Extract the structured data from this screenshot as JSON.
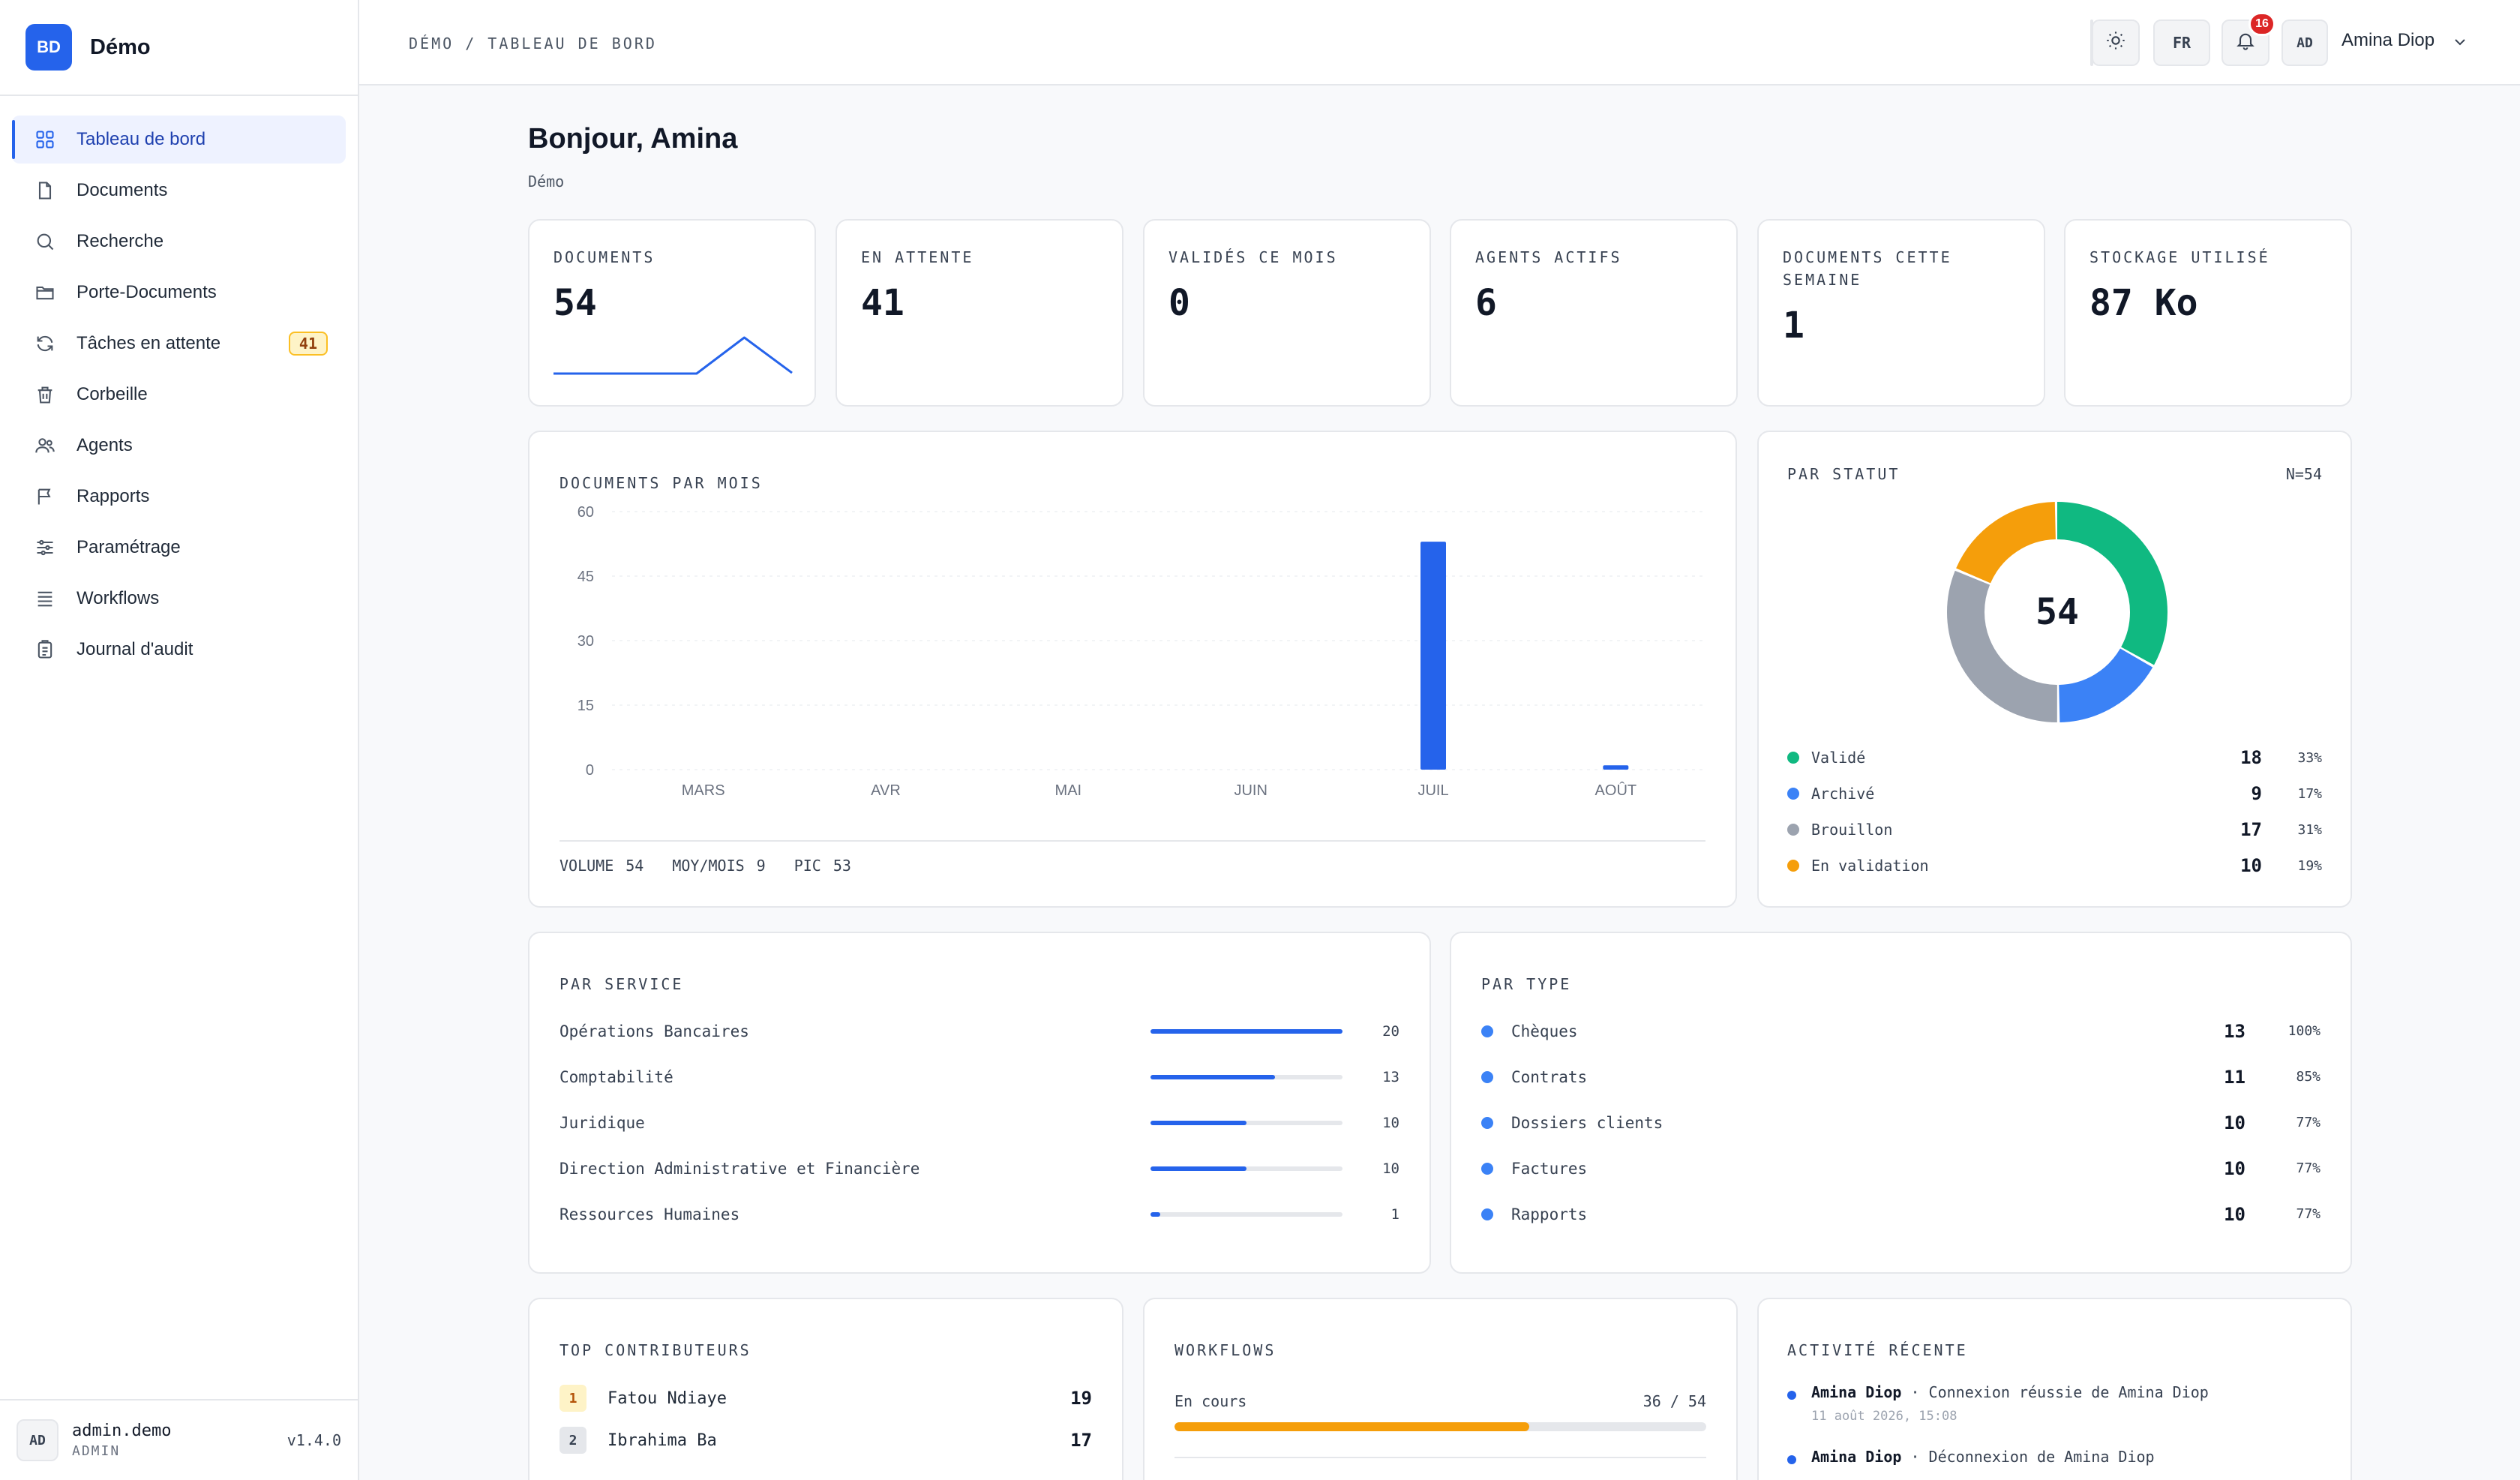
{
  "brand": {
    "initials": "BD",
    "name": "Démo"
  },
  "sidebar": {
    "items": [
      {
        "label": "Tableau de bord",
        "icon": "dashboard-icon",
        "active": true
      },
      {
        "label": "Documents",
        "icon": "file-icon"
      },
      {
        "label": "Recherche",
        "icon": "search-icon"
      },
      {
        "label": "Porte-Documents",
        "icon": "folder-icon"
      },
      {
        "label": "Tâches en attente",
        "icon": "refresh-icon",
        "badge": "41"
      },
      {
        "label": "Corbeille",
        "icon": "trash-icon"
      },
      {
        "label": "Agents",
        "icon": "users-icon"
      },
      {
        "label": "Rapports",
        "icon": "flag-icon"
      },
      {
        "label": "Paramétrage",
        "icon": "sliders-icon"
      },
      {
        "label": "Workflows",
        "icon": "list-icon"
      },
      {
        "label": "Journal d'audit",
        "icon": "clipboard-icon"
      }
    ],
    "footer": {
      "initials": "AD",
      "username": "admin.demo",
      "role": "ADMIN",
      "version": "v1.4.0"
    }
  },
  "topbar": {
    "breadcrumb": "DÉMO / TABLEAU DE BORD",
    "lang": "FR",
    "notifications": "16",
    "user_initials": "AD",
    "user_name": "Amina Diop"
  },
  "header": {
    "greeting": "Bonjour, Amina",
    "subtitle": "Démo"
  },
  "kpis": [
    {
      "label": "DOCUMENTS",
      "value": "54",
      "sparkline": [
        0,
        0,
        0,
        0,
        53,
        1
      ]
    },
    {
      "label": "EN ATTENTE",
      "value": "41"
    },
    {
      "label": "VALIDÉS CE MOIS",
      "value": "0"
    },
    {
      "label": "AGENTS ACTIFS",
      "value": "6"
    },
    {
      "label": "DOCUMENTS CETTE SEMAINE",
      "value": "1"
    },
    {
      "label": "STOCKAGE UTILISÉ",
      "value": "87 Ko"
    }
  ],
  "monthly": {
    "title": "DOCUMENTS PAR MOIS",
    "footer": {
      "volume_label": "VOLUME",
      "volume": "54",
      "avg_label": "MOY/MOIS",
      "avg": "9",
      "peak_label": "PIC",
      "peak": "53"
    }
  },
  "chart_data": {
    "type": "bar",
    "title": "DOCUMENTS PAR MOIS",
    "categories": [
      "MARS",
      "AVR",
      "MAI",
      "JUIN",
      "JUIL",
      "AOÛT"
    ],
    "values": [
      0,
      0,
      0,
      0,
      53,
      1
    ],
    "ylim": [
      0,
      60
    ],
    "yticks": [
      "0",
      "15",
      "30",
      "45",
      "60"
    ],
    "grid": true,
    "color": "#2563eb"
  },
  "status": {
    "title": "PAR STATUT",
    "total_label": "N=54",
    "center": "54",
    "items": [
      {
        "label": "Validé",
        "count": "18",
        "pct": "33%",
        "value": 18,
        "color": "#10b981"
      },
      {
        "label": "Archivé",
        "count": "9",
        "pct": "17%",
        "value": 9,
        "color": "#3b82f6"
      },
      {
        "label": "Brouillon",
        "count": "17",
        "pct": "31%",
        "value": 17,
        "color": "#9ca3af"
      },
      {
        "label": "En validation",
        "count": "10",
        "pct": "19%",
        "value": 10,
        "color": "#f59e0b"
      }
    ]
  },
  "service": {
    "title": "PAR SERVICE",
    "max": 20,
    "items": [
      {
        "label": "Opérations Bancaires",
        "count": "20",
        "value": 20
      },
      {
        "label": "Comptabilité",
        "count": "13",
        "value": 13
      },
      {
        "label": "Juridique",
        "count": "10",
        "value": 10
      },
      {
        "label": "Direction Administrative et Financière",
        "count": "10",
        "value": 10
      },
      {
        "label": "Ressources Humaines",
        "count": "1",
        "value": 1
      }
    ]
  },
  "type": {
    "title": "PAR TYPE",
    "items": [
      {
        "label": "Chèques",
        "count": "13",
        "pct": "100%"
      },
      {
        "label": "Contrats",
        "count": "11",
        "pct": "85%"
      },
      {
        "label": "Dossiers clients",
        "count": "10",
        "pct": "77%"
      },
      {
        "label": "Factures",
        "count": "10",
        "pct": "77%"
      },
      {
        "label": "Rapports",
        "count": "10",
        "pct": "77%"
      }
    ]
  },
  "contributors": {
    "title": "TOP CONTRIBUTEURS",
    "items": [
      {
        "rank": "1",
        "name": "Fatou Ndiaye",
        "count": "19"
      },
      {
        "rank": "2",
        "name": "Ibrahima Ba",
        "count": "17"
      }
    ]
  },
  "workflows": {
    "title": "WORKFLOWS",
    "label": "En cours",
    "value": "36 / 54",
    "progress": 0.667
  },
  "activity": {
    "title": "ACTIVITÉ RÉCENTE",
    "items": [
      {
        "user": "Amina Diop",
        "text": "· Connexion réussie de Amina Diop",
        "time": "11 août 2026, 15:08"
      },
      {
        "user": "Amina Diop",
        "text": "· Déconnexion de Amina Diop",
        "time": ""
      }
    ]
  },
  "colors": {
    "accent": "#2563eb",
    "warning": "#f59e0b",
    "danger": "#dc2626"
  }
}
